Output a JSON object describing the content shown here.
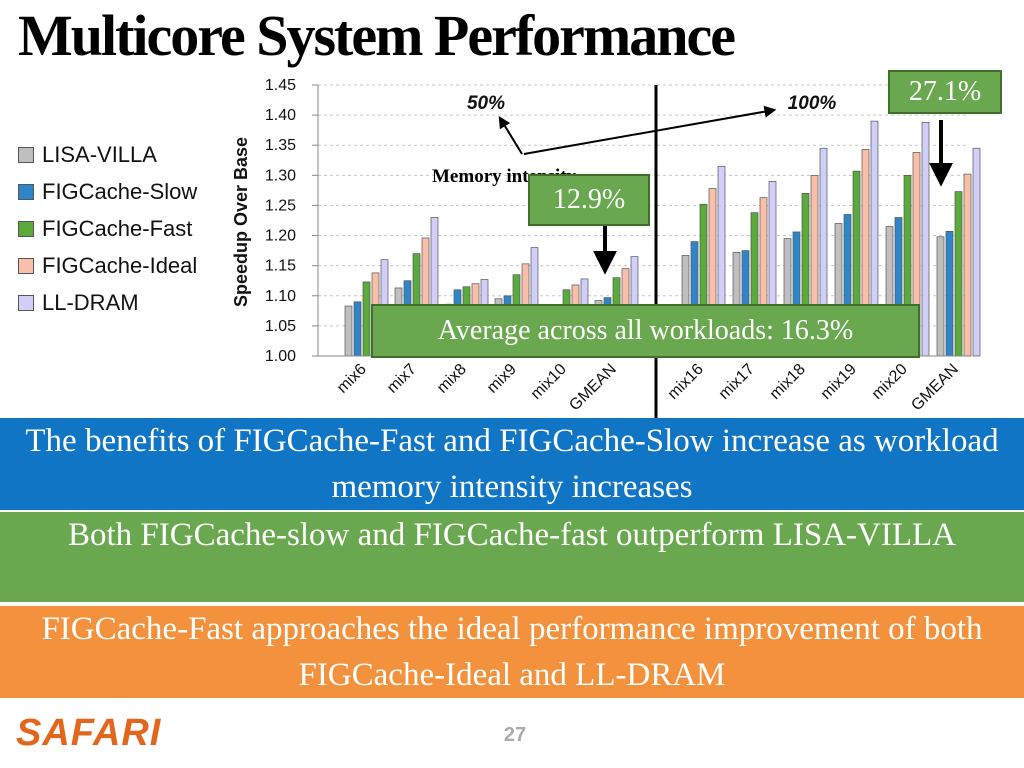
{
  "slide": {
    "title": "Multicore System Performance",
    "callout_max": "27.1%",
    "callout_mid": "12.9%",
    "callout_avg": "Average across all workloads: 16.3%",
    "memory_label": "Memory intensity",
    "banner_blue": "The benefits of FIGCache-Fast and FIGCache-Slow increase as workload memory intensity increases",
    "banner_green": "Both FIGCache-slow and FIGCache-fast outperform LISA-VILLA",
    "banner_orange": "FIGCache-Fast approaches the ideal performance improvement of both FIGCache-Ideal and LL-DRAM",
    "logo": "SAFARI",
    "page_number": "27"
  },
  "chart_data": {
    "type": "bar",
    "title": "",
    "xlabel": "",
    "ylabel": "Speedup Over Base",
    "ylim": [
      1.0,
      1.45
    ],
    "yticks": [
      "1.00",
      "1.05",
      "1.10",
      "1.15",
      "1.20",
      "1.25",
      "1.30",
      "1.35",
      "1.40",
      "1.45"
    ],
    "grid": true,
    "legend_position": "left",
    "series_names": [
      "LISA-VILLA",
      "FIGCache-Slow",
      "FIGCache-Fast",
      "FIGCache-Ideal",
      "LL-DRAM"
    ],
    "series_colors": [
      "#bfbfbf",
      "#2e86c8",
      "#5aaa3c",
      "#f9bfa8",
      "#cfcffa"
    ],
    "panels": [
      {
        "label": "50%",
        "categories": [
          "mix6",
          "mix7",
          "mix8",
          "mix9",
          "mix10",
          "GMEAN"
        ],
        "series": [
          {
            "name": "LISA-VILLA",
            "values": [
              1.083,
              1.113,
              1.086,
              1.095,
              1.078,
              1.092
            ]
          },
          {
            "name": "FIGCache-Slow",
            "values": [
              1.09,
              1.125,
              1.11,
              1.1,
              1.085,
              1.097
            ]
          },
          {
            "name": "FIGCache-Fast",
            "values": [
              1.123,
              1.17,
              1.115,
              1.135,
              1.11,
              1.13
            ]
          },
          {
            "name": "FIGCache-Ideal",
            "values": [
              1.138,
              1.196,
              1.12,
              1.153,
              1.118,
              1.145
            ]
          },
          {
            "name": "LL-DRAM",
            "values": [
              1.16,
              1.23,
              1.127,
              1.18,
              1.128,
              1.165
            ]
          }
        ]
      },
      {
        "label": "100%",
        "categories": [
          "mix16",
          "mix17",
          "mix18",
          "mix19",
          "mix20",
          "GMEAN"
        ],
        "series": [
          {
            "name": "LISA-VILLA",
            "values": [
              1.167,
              1.172,
              1.195,
              1.22,
              1.215,
              1.198
            ]
          },
          {
            "name": "FIGCache-Slow",
            "values": [
              1.19,
              1.175,
              1.206,
              1.235,
              1.23,
              1.207
            ]
          },
          {
            "name": "FIGCache-Fast",
            "values": [
              1.252,
              1.238,
              1.27,
              1.307,
              1.3,
              1.273
            ]
          },
          {
            "name": "FIGCache-Ideal",
            "values": [
              1.278,
              1.263,
              1.3,
              1.343,
              1.338,
              1.302
            ]
          },
          {
            "name": "LL-DRAM",
            "values": [
              1.315,
              1.29,
              1.345,
              1.39,
              1.388,
              1.345
            ]
          }
        ]
      }
    ]
  }
}
